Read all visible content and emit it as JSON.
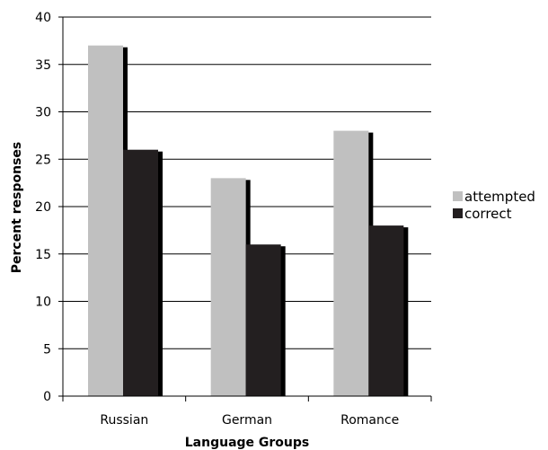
{
  "chart_data": {
    "type": "bar",
    "title": "",
    "xlabel": "Language Groups",
    "ylabel": "Percent responses",
    "categories": [
      "Russian",
      "German",
      "Romance"
    ],
    "series": [
      {
        "name": "attempted",
        "values": [
          37,
          23,
          28
        ],
        "color": "#c0c0c0",
        "shadow": "#000000"
      },
      {
        "name": "correct",
        "values": [
          26,
          16,
          18
        ],
        "color": "#231f20",
        "shadow": "#000000"
      }
    ],
    "ylim": [
      0,
      40
    ],
    "yticks": [
      0,
      5,
      10,
      15,
      20,
      25,
      30,
      35,
      40
    ],
    "grid": true,
    "legend_position": "right"
  }
}
